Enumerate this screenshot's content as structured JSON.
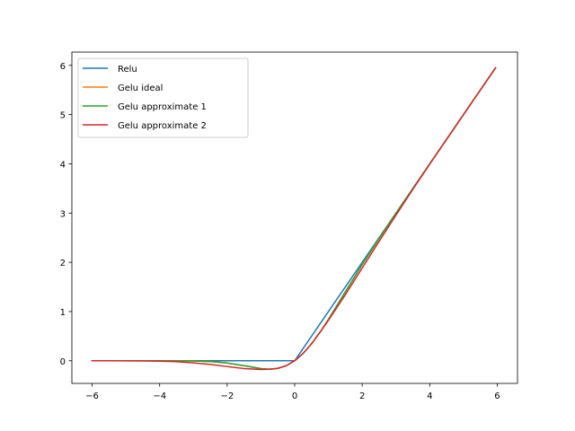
{
  "chart_data": {
    "type": "line",
    "title": "",
    "xlabel": "",
    "ylabel": "",
    "xlim": [
      -6.6,
      6.6
    ],
    "ylim": [
      -0.46,
      6.27
    ],
    "xticks": [
      -6,
      -4,
      -2,
      0,
      2,
      4,
      6
    ],
    "yticks": [
      0,
      1,
      2,
      3,
      4,
      5,
      6
    ],
    "xtick_labels": [
      "−6",
      "−4",
      "−2",
      "0",
      "2",
      "4",
      "6"
    ],
    "ytick_labels": [
      "0",
      "1",
      "2",
      "3",
      "4",
      "5",
      "6"
    ],
    "grid": false,
    "legend_position": "upper-left",
    "x": [
      -6.0,
      -5.5,
      -5.0,
      -4.5,
      -4.0,
      -3.5,
      -3.0,
      -2.5,
      -2.0,
      -1.5,
      -1.0,
      -0.75,
      -0.5,
      -0.25,
      0.0,
      0.25,
      0.5,
      0.75,
      1.0,
      1.5,
      2.0,
      2.5,
      3.0,
      3.5,
      4.0,
      4.5,
      5.0,
      5.5,
      5.95
    ],
    "series": [
      {
        "name": "Relu",
        "color": "#1f77b4",
        "values": [
          0,
          0,
          0,
          0,
          0,
          0,
          0,
          0,
          0,
          0,
          0,
          0,
          0,
          0,
          0,
          0.25,
          0.5,
          0.75,
          1.0,
          1.5,
          2.0,
          2.5,
          3.0,
          3.5,
          4.0,
          4.5,
          5.0,
          5.5,
          5.95
        ]
      },
      {
        "name": "Gelu ideal",
        "color": "#ff7f0e",
        "values": [
          0,
          0,
          0,
          -2e-05,
          -0.0001,
          -0.0008,
          -0.004,
          -0.0155,
          -0.0455,
          -0.1002,
          -0.1587,
          -0.1702,
          -0.1543,
          -0.1003,
          0,
          0.1497,
          0.3457,
          0.5798,
          0.8413,
          1.3998,
          1.9545,
          2.4845,
          2.996,
          3.4992,
          3.9999,
          4.5,
          5.0,
          5.5,
          5.95
        ]
      },
      {
        "name": "Gelu approximate 1",
        "color": "#2ca02c",
        "values": [
          0,
          0,
          0,
          -2e-05,
          -0.0001,
          -0.0008,
          -0.0036,
          -0.0153,
          -0.0454,
          -0.1004,
          -0.1588,
          -0.1702,
          -0.1543,
          -0.1003,
          0,
          0.1497,
          0.3457,
          0.5798,
          0.8412,
          1.3996,
          1.9546,
          2.4847,
          2.9964,
          3.4993,
          4.0,
          4.5,
          5.0,
          5.5,
          5.95
        ]
      },
      {
        "name": "Gelu approximate 2",
        "color": "#d62728",
        "values": [
          -0.0001,
          -0.0003,
          -0.0011,
          -0.0031,
          -0.0078,
          -0.0186,
          -0.0424,
          -0.0758,
          -0.1169,
          -0.1579,
          -0.177,
          -0.1725,
          -0.1537,
          -0.0997,
          0,
          0.1503,
          0.3463,
          0.5775,
          0.8231,
          1.3421,
          1.8831,
          2.4242,
          2.9576,
          3.4814,
          3.9922,
          4.4969,
          4.9989,
          5.4997,
          5.9499
        ]
      }
    ]
  }
}
